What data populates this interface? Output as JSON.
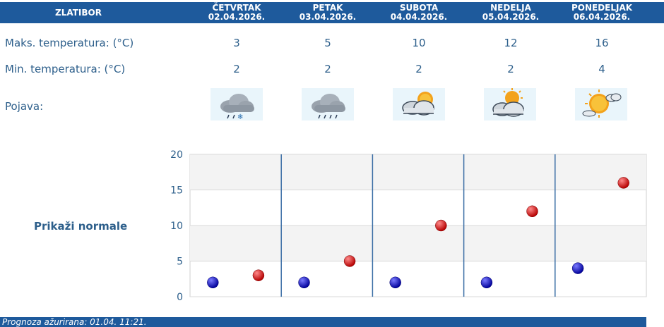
{
  "header": {
    "location": "ZLATIBOR",
    "days": [
      {
        "name": "ČETVRTAK",
        "date": "02.04.2026."
      },
      {
        "name": "PETAK",
        "date": "03.04.2026."
      },
      {
        "name": "SUBOTA",
        "date": "04.04.2026."
      },
      {
        "name": "NEDELJA",
        "date": "05.04.2026."
      },
      {
        "name": "PONEDELJAK",
        "date": "06.04.2026."
      }
    ]
  },
  "rows": {
    "max_label": "Maks. temperatura: (°C)",
    "min_label": "Min. temperatura: (°C)",
    "pojava_label": "Pojava:",
    "max_values": [
      "3",
      "5",
      "10",
      "12",
      "16"
    ],
    "min_values": [
      "2",
      "2",
      "2",
      "2",
      "4"
    ],
    "icons": [
      "cloud-snow-icon",
      "cloud-rain-icon",
      "partly-sunny-icon",
      "partly-sunny-icon",
      "sun-cloud-icon"
    ]
  },
  "normale_link": "Prikaži normale",
  "footer": {
    "text": "Prognoza ažurirana:  01.04. 11:21."
  },
  "colors": {
    "header_bg": "#1e5a9c",
    "max_marker": "#cc0000",
    "min_marker": "#0000bb",
    "text": "#2d5f8b"
  },
  "chart_data": {
    "type": "scatter",
    "yticks": [
      "0",
      "5",
      "10",
      "15",
      "20"
    ],
    "ylim": [
      0,
      20
    ],
    "series": [
      {
        "values": [
          3,
          5,
          10,
          12,
          16
        ],
        "color": "#cc0000"
      },
      {
        "values": [
          2,
          2,
          2,
          2,
          4
        ],
        "color": "#0000bb"
      }
    ]
  }
}
